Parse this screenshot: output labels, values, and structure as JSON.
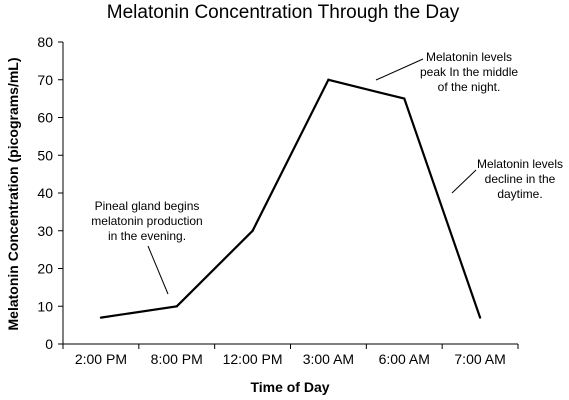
{
  "chart_data": {
    "type": "line",
    "title": "Melatonin Concentration Through the Day",
    "xlabel": "Time of Day",
    "ylabel": "Melatonin Concentration (picograms/mL)",
    "categories": [
      "2:00 PM",
      "8:00 PM",
      "12:00 PM",
      "3:00 AM",
      "6:00 AM",
      "7:00 AM"
    ],
    "values": [
      7,
      10,
      30,
      70,
      65,
      7
    ],
    "ylim": [
      0,
      80
    ],
    "yticks": [
      0,
      10,
      20,
      30,
      40,
      50,
      60,
      70,
      80
    ],
    "grid": false,
    "line_color": "#000000",
    "annotations": [
      {
        "lines": [
          "Pineal gland begins",
          "melatonin production",
          "in the evening."
        ],
        "points_to": {
          "x": "8:00 PM",
          "y": 10
        }
      },
      {
        "lines": [
          "Melatonin levels",
          "peak In the middle",
          "of the night."
        ],
        "points_to": {
          "x": "3:00 AM",
          "y": 70
        }
      },
      {
        "lines": [
          "Melatonin levels",
          "decline in the",
          "daytime."
        ],
        "points_to": {
          "x": "6:00 AM",
          "y": 65
        }
      }
    ]
  }
}
